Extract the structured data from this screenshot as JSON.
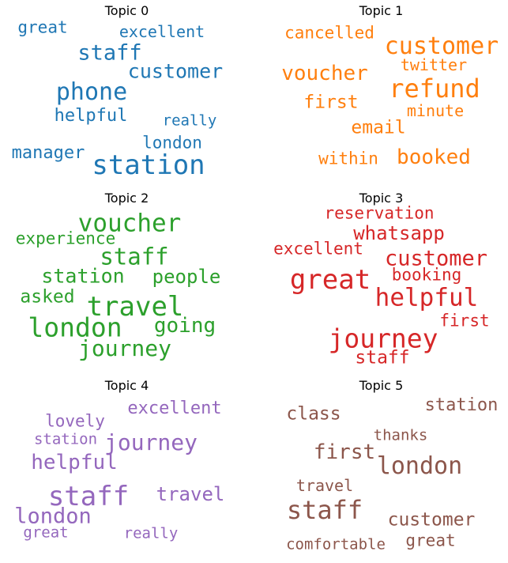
{
  "chart_data": [
    {
      "type": "wordcloud",
      "title": "Topic 0",
      "color": "#1f77b4",
      "words": [
        {
          "text": "station",
          "weight": 1.0
        },
        {
          "text": "phone",
          "weight": 0.88
        },
        {
          "text": "staff",
          "weight": 0.8
        },
        {
          "text": "customer",
          "weight": 0.72
        },
        {
          "text": "manager",
          "weight": 0.65
        },
        {
          "text": "helpful",
          "weight": 0.65
        },
        {
          "text": "london",
          "weight": 0.6
        },
        {
          "text": "great",
          "weight": 0.6
        },
        {
          "text": "excellent",
          "weight": 0.58
        },
        {
          "text": "really",
          "weight": 0.55
        }
      ]
    },
    {
      "type": "wordcloud",
      "title": "Topic 1",
      "color": "#ff7f0e",
      "words": [
        {
          "text": "refund",
          "weight": 1.0
        },
        {
          "text": "customer",
          "weight": 0.92
        },
        {
          "text": "voucher",
          "weight": 0.8
        },
        {
          "text": "booked",
          "weight": 0.78
        },
        {
          "text": "email",
          "weight": 0.7
        },
        {
          "text": "first",
          "weight": 0.68
        },
        {
          "text": "cancelled",
          "weight": 0.62
        },
        {
          "text": "within",
          "weight": 0.62
        },
        {
          "text": "minute",
          "weight": 0.6
        },
        {
          "text": "twitter",
          "weight": 0.58
        }
      ]
    },
    {
      "type": "wordcloud",
      "title": "Topic 2",
      "color": "#2ca02c",
      "words": [
        {
          "text": "travel",
          "weight": 1.0
        },
        {
          "text": "london",
          "weight": 0.98
        },
        {
          "text": "voucher",
          "weight": 0.9
        },
        {
          "text": "staff",
          "weight": 0.85
        },
        {
          "text": "journey",
          "weight": 0.82
        },
        {
          "text": "going",
          "weight": 0.76
        },
        {
          "text": "station",
          "weight": 0.72
        },
        {
          "text": "people",
          "weight": 0.7
        },
        {
          "text": "asked",
          "weight": 0.68
        },
        {
          "text": "experience",
          "weight": 0.6
        }
      ]
    },
    {
      "type": "wordcloud",
      "title": "Topic 3",
      "color": "#d62728",
      "words": [
        {
          "text": "great",
          "weight": 1.0
        },
        {
          "text": "journey",
          "weight": 0.98
        },
        {
          "text": "helpful",
          "weight": 0.92
        },
        {
          "text": "customer",
          "weight": 0.78
        },
        {
          "text": "whatsapp",
          "weight": 0.7
        },
        {
          "text": "staff",
          "weight": 0.68
        },
        {
          "text": "reservation",
          "weight": 0.62
        },
        {
          "text": "excellent",
          "weight": 0.62
        },
        {
          "text": "booking",
          "weight": 0.62
        },
        {
          "text": "first",
          "weight": 0.6
        }
      ]
    },
    {
      "type": "wordcloud",
      "title": "Topic 4",
      "color": "#9467bd",
      "words": [
        {
          "text": "staff",
          "weight": 1.0
        },
        {
          "text": "journey",
          "weight": 0.82
        },
        {
          "text": "london",
          "weight": 0.78
        },
        {
          "text": "helpful",
          "weight": 0.76
        },
        {
          "text": "travel",
          "weight": 0.7
        },
        {
          "text": "excellent",
          "weight": 0.64
        },
        {
          "text": "lovely",
          "weight": 0.6
        },
        {
          "text": "station",
          "weight": 0.56
        },
        {
          "text": "great",
          "weight": 0.56
        },
        {
          "text": "really",
          "weight": 0.56
        }
      ]
    },
    {
      "type": "wordcloud",
      "title": "Topic 5",
      "color": "#8c564b",
      "words": [
        {
          "text": "staff",
          "weight": 1.0
        },
        {
          "text": "london",
          "weight": 0.92
        },
        {
          "text": "first",
          "weight": 0.78
        },
        {
          "text": "class",
          "weight": 0.7
        },
        {
          "text": "customer",
          "weight": 0.68
        },
        {
          "text": "station",
          "weight": 0.64
        },
        {
          "text": "great",
          "weight": 0.62
        },
        {
          "text": "travel",
          "weight": 0.58
        },
        {
          "text": "thanks",
          "weight": 0.56
        },
        {
          "text": "comfortable",
          "weight": 0.56
        }
      ]
    }
  ]
}
